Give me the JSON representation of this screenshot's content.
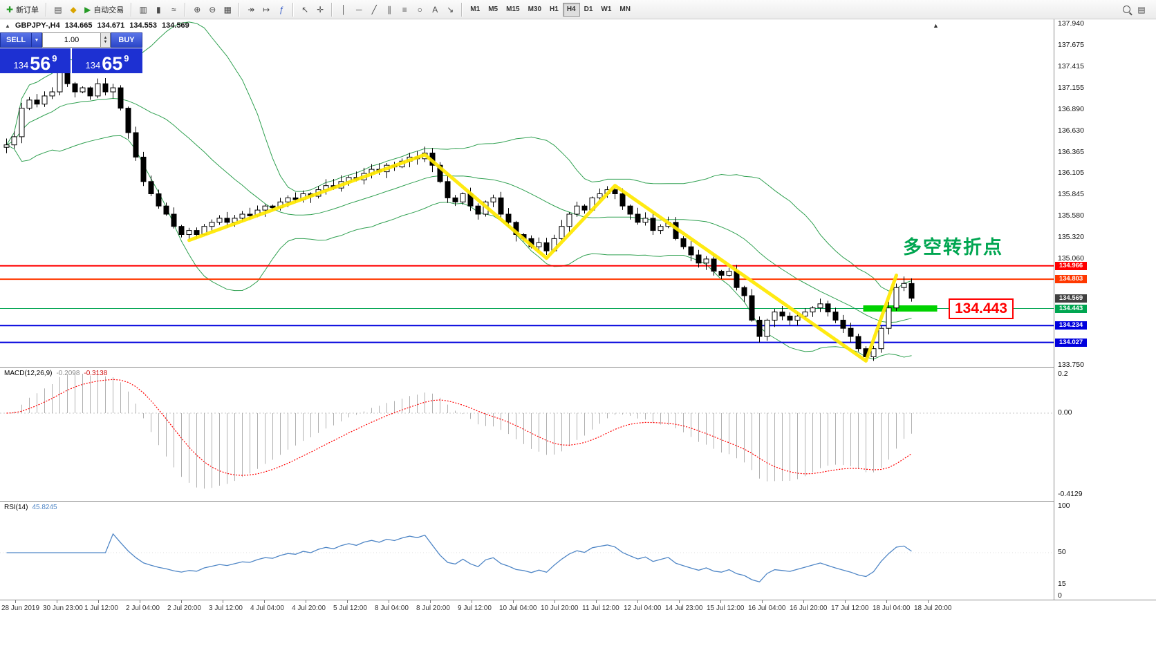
{
  "toolbar": {
    "new_order": "新订单",
    "autotrade": "自动交易",
    "text_tool": "A",
    "timeframes": [
      "M1",
      "M5",
      "M15",
      "M30",
      "H1",
      "H4",
      "D1",
      "W1",
      "MN"
    ],
    "active_timeframe": "H4",
    "icons": {
      "new_order": "✚",
      "profiles": "▤",
      "metaeditor": "◆",
      "autotrade_play": "▶",
      "bars_type": "▥",
      "candles_type": "▮",
      "line_type": "≈",
      "zoom_in": "⊕",
      "zoom_out": "⊖",
      "tile_windows": "▦",
      "auto_scroll": "↠",
      "chart_shift": "↦",
      "indicators": "ƒ",
      "cursor": "↖",
      "crosshair": "✛",
      "vertical_line": "│",
      "horizontal_line": "─",
      "trendline": "╱",
      "channel": "∥",
      "fibonacci": "≡",
      "shapes": "○",
      "arrows": "↘",
      "accounts": "▤"
    }
  },
  "quote_bar": {
    "symbol": "GBPJPY-,H4",
    "open": "134.665",
    "high": "134.671",
    "low": "134.553",
    "close": "134.569"
  },
  "trade_panel": {
    "sell_label": "SELL",
    "buy_label": "BUY",
    "lot_size": "1.00",
    "bid": {
      "prefix": "134",
      "main": "56",
      "sup": "9"
    },
    "ask": {
      "prefix": "134",
      "main": "65",
      "sup": "9"
    }
  },
  "annotations": {
    "turning_point_text": "多空转折点",
    "turning_point_color": "#00a651",
    "price_callout": "134.443",
    "callout_color": "#ff0000"
  },
  "price_axis": {
    "labels": [
      "137.940",
      "137.675",
      "137.415",
      "137.155",
      "136.890",
      "136.630",
      "136.365",
      "136.105",
      "135.845",
      "135.580",
      "135.320",
      "135.060",
      "133.750"
    ],
    "tags": [
      {
        "text": "134.966",
        "bg": "#ff0000"
      },
      {
        "text": "134.803",
        "bg": "#ff3800"
      },
      {
        "text": "134.569",
        "bg": "#404040"
      },
      {
        "text": "134.443",
        "bg": "#00a651"
      },
      {
        "text": "134.234",
        "bg": "#0000dd"
      },
      {
        "text": "134.027",
        "bg": "#0000dd"
      }
    ]
  },
  "macd_panel": {
    "name": "MACD(12,26,9)",
    "value1": "-0.2098",
    "value2": "-0.3138",
    "axis_labels": [
      "0.2",
      "0.00",
      "-0.4129"
    ]
  },
  "rsi_panel": {
    "name": "RSI(14)",
    "value": "45.8245",
    "axis_labels": [
      "100",
      "50",
      "15",
      "0"
    ]
  },
  "time_axis": [
    "28 Jun 2019",
    "30 Jun 23:00",
    "1 Jul 12:00",
    "2 Jul 04:00",
    "2 Jul 20:00",
    "3 Jul 12:00",
    "4 Jul 04:00",
    "4 Jul 20:00",
    "5 Jul 12:00",
    "8 Jul 04:00",
    "8 Jul 20:00",
    "9 Jul 12:00",
    "10 Jul 04:00",
    "10 Jul 20:00",
    "11 Jul 12:00",
    "12 Jul 04:00",
    "14 Jul 23:00",
    "15 Jul 12:00",
    "16 Jul 04:00",
    "16 Jul 20:00",
    "17 Jul 12:00",
    "18 Jul 04:00",
    "18 Jul 20:00"
  ],
  "chart_data": {
    "type": "candlestick",
    "symbol": "GBPJPY",
    "timeframe": "H4",
    "title": "GBPJPY H4 with Bollinger Bands(20,2), MACD(12,26,9), RSI(14)",
    "y_axis": {
      "min": 133.75,
      "max": 137.94
    },
    "closes": [
      136.45,
      136.55,
      136.9,
      137.0,
      136.95,
      137.05,
      137.1,
      137.35,
      137.2,
      137.1,
      137.15,
      137.05,
      137.2,
      137.1,
      137.15,
      136.9,
      136.6,
      136.3,
      136.0,
      135.85,
      135.7,
      135.6,
      135.45,
      135.35,
      135.4,
      135.35,
      135.45,
      135.5,
      135.55,
      135.5,
      135.55,
      135.6,
      135.58,
      135.65,
      135.7,
      135.68,
      135.75,
      135.8,
      135.78,
      135.85,
      135.82,
      135.9,
      135.95,
      135.92,
      136.0,
      136.05,
      136.02,
      136.1,
      136.15,
      136.12,
      136.2,
      136.18,
      136.25,
      136.3,
      136.28,
      136.35,
      136.2,
      136.0,
      135.8,
      135.75,
      135.85,
      135.7,
      135.6,
      135.75,
      135.8,
      135.6,
      135.5,
      135.35,
      135.3,
      135.2,
      135.25,
      135.15,
      135.3,
      135.45,
      135.6,
      135.7,
      135.65,
      135.8,
      135.85,
      135.9,
      135.85,
      135.7,
      135.6,
      135.5,
      135.55,
      135.4,
      135.45,
      135.5,
      135.3,
      135.2,
      135.1,
      135.0,
      135.05,
      134.9,
      134.85,
      134.9,
      134.7,
      134.6,
      134.3,
      134.1,
      134.3,
      134.4,
      134.35,
      134.3,
      134.35,
      134.4,
      134.45,
      134.5,
      134.4,
      134.3,
      134.2,
      134.1,
      133.95,
      133.85,
      133.95,
      134.2,
      134.45,
      134.7,
      134.75,
      134.569
    ],
    "indicators": {
      "bollinger_period": 20,
      "bollinger_dev": 2,
      "macd": [
        12,
        26,
        9
      ],
      "macd_current": [
        -0.2098,
        -0.3138
      ],
      "rsi_period": 14,
      "rsi_current": 45.8245
    },
    "hlines": [
      {
        "price": 134.966,
        "color": "#ff0000",
        "width": 2
      },
      {
        "price": 134.803,
        "color": "#ff3800",
        "width": 2
      },
      {
        "price": 134.443,
        "color": "#00a651",
        "width": 1
      },
      {
        "price": 134.234,
        "color": "#0000dd",
        "width": 2
      },
      {
        "price": 134.027,
        "color": "#0000dd",
        "width": 2
      }
    ],
    "highlight_bar": {
      "price": 134.443,
      "from_candle": 113,
      "to_candle": 122,
      "color": "#00d200"
    },
    "zigzag": {
      "color": "#ffe800",
      "points": [
        [
          24,
          135.28
        ],
        [
          55,
          136.33
        ],
        [
          71,
          135.06
        ],
        [
          80,
          135.95
        ],
        [
          113,
          133.8
        ],
        [
          117,
          134.85
        ]
      ]
    },
    "current_price": 134.569
  }
}
